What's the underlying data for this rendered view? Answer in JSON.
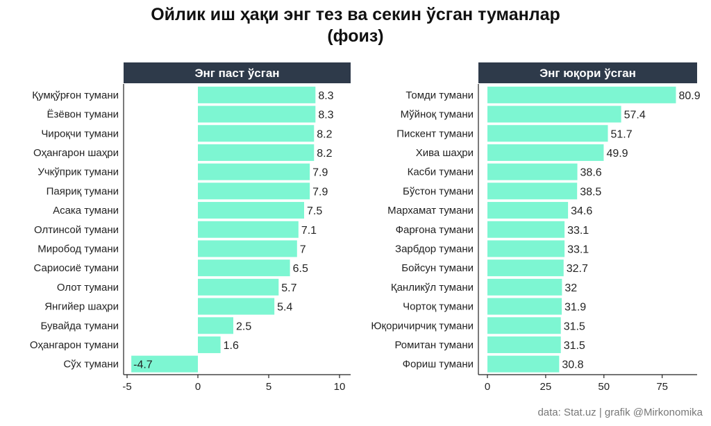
{
  "title_line1": "Ойлик иш ҳақи энг тез ва секин ўсган туманлар",
  "title_line2": "(фоиз)",
  "caption": "data:  Stat.uz | grafik @Mirkonomika",
  "colors": {
    "bar": "#7df6d2",
    "strip": "#2e3a4a",
    "strip_text": "#ffffff",
    "axis": "#222222"
  },
  "chart_data": [
    {
      "type": "bar",
      "orientation": "horizontal",
      "panel_title": "Энг паст ўсган",
      "xlim": [
        -5,
        10
      ],
      "xticks": [
        -5,
        0,
        5,
        10
      ],
      "categories": [
        "Қумқўрғон тумани",
        "Ёзёвон тумани",
        "Чироқчи тумани",
        "Оҳангарон шаҳри",
        "Учкўприк тумани",
        "Паяриқ тумани",
        "Асака тумани",
        "Олтинсой тумани",
        "Миробод тумани",
        "Сариосиё тумани",
        "Олот тумани",
        "Янгийер шаҳри",
        "Бувайда тумани",
        "Оҳангарон тумани",
        "Сўх тумани"
      ],
      "values": [
        8.3,
        8.3,
        8.2,
        8.2,
        7.9,
        7.9,
        7.5,
        7.1,
        7,
        6.5,
        5.7,
        5.4,
        2.5,
        1.6,
        -4.7
      ],
      "value_labels": [
        "8.3",
        "8.3",
        "8.2",
        "8.2",
        "7.9",
        "7.9",
        "7.5",
        "7.1",
        "7",
        "6.5",
        "5.7",
        "5.4",
        "2.5",
        "1.6",
        "-4.7"
      ]
    },
    {
      "type": "bar",
      "orientation": "horizontal",
      "panel_title": "Энг юқори ўсган",
      "xlim": [
        0,
        90
      ],
      "xticks": [
        0,
        25,
        50,
        75
      ],
      "categories": [
        "Томди тумани",
        "Мўйноқ тумани",
        "Пискент тумани",
        "Хива шаҳри",
        "Касби тумани",
        "Бўстон тумани",
        "Мархамат тумани",
        "Фарғона тумани",
        "Зарбдор тумани",
        "Бойсун тумани",
        "Қанликўл тумани",
        "Чортоқ тумани",
        "Юқоричирчиқ тумани",
        "Ромитан тумани",
        "Фориш тумани"
      ],
      "values": [
        80.9,
        57.4,
        51.7,
        49.9,
        38.6,
        38.5,
        34.6,
        33.1,
        33.1,
        32.7,
        32,
        31.9,
        31.5,
        31.5,
        30.8
      ],
      "value_labels": [
        "80.9",
        "57.4",
        "51.7",
        "49.9",
        "38.6",
        "38.5",
        "34.6",
        "33.1",
        "33.1",
        "32.7",
        "32",
        "31.9",
        "31.5",
        "31.5",
        "30.8"
      ]
    }
  ]
}
